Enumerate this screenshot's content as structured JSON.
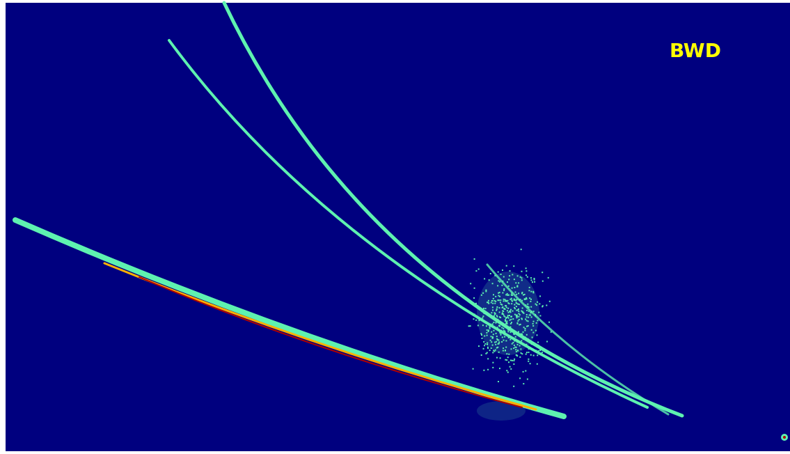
{
  "label": "BWD"
}
